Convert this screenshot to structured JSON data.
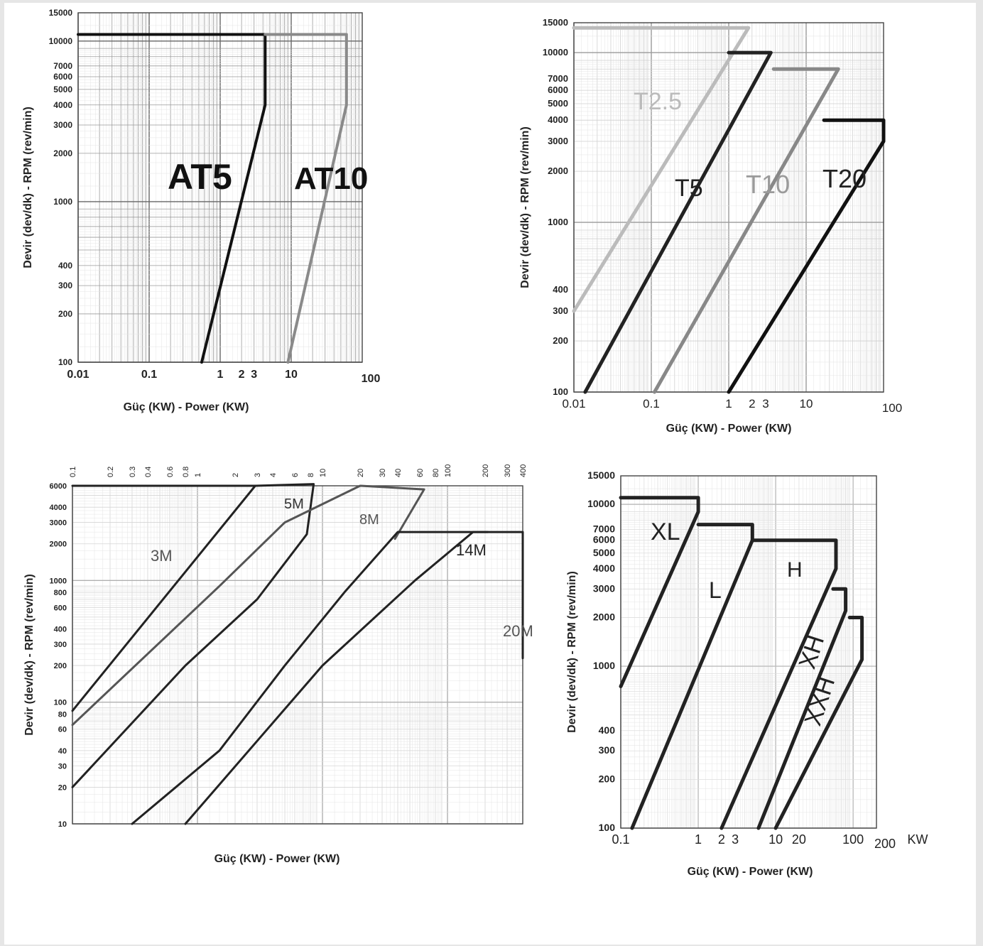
{
  "chart_data": [
    {
      "type": "line",
      "xlabel": "Güç (KW) - Power (KW)",
      "ylabel": "Devir (dev/dk) - RPM (rev/min)",
      "x_scale": "log",
      "y_scale": "log",
      "xlim": [
        0.01,
        100
      ],
      "ylim": [
        100,
        15000
      ],
      "x_ticks": [
        "0.01",
        "0.1",
        "1",
        "2",
        "3",
        "10",
        "100"
      ],
      "y_ticks": [
        "15000",
        "10000",
        "7000",
        "6000",
        "5000",
        "4000",
        "3000",
        "2000",
        "1000",
        "400",
        "300",
        "200",
        "100"
      ],
      "series": [
        {
          "name": "AT5",
          "color": "#111111",
          "points": [
            [
              0.55,
              100
            ],
            [
              4.3,
              4000
            ],
            [
              4.3,
              11000
            ],
            [
              0.01,
              11000
            ]
          ]
        },
        {
          "name": "AT10",
          "color": "#8a8a8a",
          "points": [
            [
              9,
              100
            ],
            [
              60,
              4000
            ],
            [
              60,
              11000
            ],
            [
              4.3,
              11000
            ]
          ]
        }
      ]
    },
    {
      "type": "line",
      "xlabel": "Güç (KW) - Power (KW)",
      "ylabel": "Devir (dev/dk) - RPM (rev/min)",
      "x_scale": "log",
      "y_scale": "log",
      "xlim": [
        0.01,
        100
      ],
      "ylim": [
        100,
        15000
      ],
      "x_ticks": [
        "0.01",
        "0.1",
        "1",
        "2",
        "3",
        "10",
        "100"
      ],
      "y_ticks": [
        "15000",
        "10000",
        "7000",
        "6000",
        "5000",
        "4000",
        "3000",
        "2000",
        "1000",
        "400",
        "300",
        "200",
        "100"
      ],
      "series": [
        {
          "name": "T2.5",
          "color": "#bbbbbb",
          "points": [
            [
              0.01,
              300
            ],
            [
              1.8,
              14000
            ],
            [
              0.01,
              14000
            ]
          ]
        },
        {
          "name": "T5",
          "color": "#222222",
          "points": [
            [
              0.014,
              100
            ],
            [
              3.5,
              10000
            ],
            [
              1,
              10000
            ]
          ]
        },
        {
          "name": "T10",
          "color": "#888888",
          "points": [
            [
              0.11,
              100
            ],
            [
              26,
              8000
            ],
            [
              3.8,
              8000
            ]
          ]
        },
        {
          "name": "T20",
          "color": "#111111",
          "points": [
            [
              1,
              100
            ],
            [
              100,
              3000
            ],
            [
              100,
              4000
            ],
            [
              17,
              4000
            ]
          ]
        }
      ]
    },
    {
      "type": "line",
      "xlabel": "Güç (KW) - Power (KW)",
      "ylabel": "Devir (dev/dk) - RPM (rev/min)",
      "x_scale": "log",
      "y_scale": "log",
      "xlim": [
        0.1,
        400
      ],
      "ylim": [
        10,
        6000
      ],
      "x_ticks": [
        "0.1",
        "0.2",
        "0.3",
        "0.4",
        "0.6",
        "0.8",
        "1",
        "2",
        "3",
        "4",
        "6",
        "8",
        "10",
        "20",
        "30",
        "40",
        "60",
        "80",
        "100",
        "200",
        "300",
        "400"
      ],
      "y_ticks": [
        "6000",
        "4000",
        "3000",
        "2000",
        "1000",
        "800",
        "600",
        "400",
        "300",
        "200",
        "100",
        "80",
        "60",
        "40",
        "30",
        "20",
        "10"
      ],
      "series": [
        {
          "name": "3M",
          "color": "#222222",
          "points": [
            [
              0.1,
              85
            ],
            [
              2.9,
              6000
            ],
            [
              0.1,
              6000
            ]
          ]
        },
        {
          "name": "5M",
          "color": "#222222",
          "points": [
            [
              0.1,
              20
            ],
            [
              0.8,
              200
            ],
            [
              3,
              700
            ],
            [
              7.5,
              2400
            ],
            [
              8.5,
              6200
            ],
            [
              2.9,
              6000
            ]
          ]
        },
        {
          "name": "8M",
          "color": "#555555",
          "points": [
            [
              0.1,
              65
            ],
            [
              1.5,
              900
            ],
            [
              5,
              3000
            ],
            [
              20,
              6000
            ],
            [
              65,
              5600
            ],
            [
              38,
              2200
            ]
          ]
        },
        {
          "name": "14M",
          "color": "#222222",
          "points": [
            [
              0.3,
              10
            ],
            [
              1.5,
              40
            ],
            [
              5,
              200
            ],
            [
              15,
              800
            ],
            [
              40,
              2500
            ],
            [
              210,
              2500
            ]
          ]
        },
        {
          "name": "20M",
          "color": "#222222",
          "points": [
            [
              0.8,
              10
            ],
            [
              10,
              200
            ],
            [
              55,
              1000
            ],
            [
              160,
              2500
            ],
            [
              400,
              2500
            ],
            [
              400,
              230
            ]
          ]
        }
      ]
    },
    {
      "type": "line",
      "xlabel": "Güç (KW) - Power (KW)",
      "ylabel": "Devir (dev/dk) - RPM (rev/min)",
      "x_scale": "log",
      "y_scale": "log",
      "xlim": [
        0.1,
        200
      ],
      "ylim": [
        100,
        15000
      ],
      "x_ticks": [
        "0.1",
        "1",
        "2",
        "3",
        "10",
        "20",
        "100",
        "200",
        "KW"
      ],
      "y_ticks": [
        "15000",
        "10000",
        "7000",
        "6000",
        "5000",
        "4000",
        "3000",
        "2000",
        "1000",
        "400",
        "300",
        "200",
        "100"
      ],
      "series": [
        {
          "name": "XL",
          "color": "#222222",
          "points": [
            [
              0.1,
              750
            ],
            [
              1,
              9000
            ],
            [
              1,
              11000
            ],
            [
              0.1,
              11000
            ]
          ]
        },
        {
          "name": "L",
          "color": "#222222",
          "points": [
            [
              0.14,
              100
            ],
            [
              5,
              6000
            ],
            [
              5,
              7500
            ],
            [
              1,
              7500
            ]
          ]
        },
        {
          "name": "H",
          "color": "#222222",
          "points": [
            [
              2,
              100
            ],
            [
              60,
              4000
            ],
            [
              60,
              6000
            ],
            [
              5,
              6000
            ]
          ]
        },
        {
          "name": "XH",
          "color": "#222222",
          "points": [
            [
              6,
              100
            ],
            [
              80,
              2200
            ],
            [
              80,
              3000
            ],
            [
              55,
              3000
            ]
          ]
        },
        {
          "name": "XXH",
          "color": "#222222",
          "points": [
            [
              10,
              100
            ],
            [
              130,
              1100
            ],
            [
              130,
              2000
            ],
            [
              90,
              2000
            ]
          ]
        }
      ]
    }
  ]
}
